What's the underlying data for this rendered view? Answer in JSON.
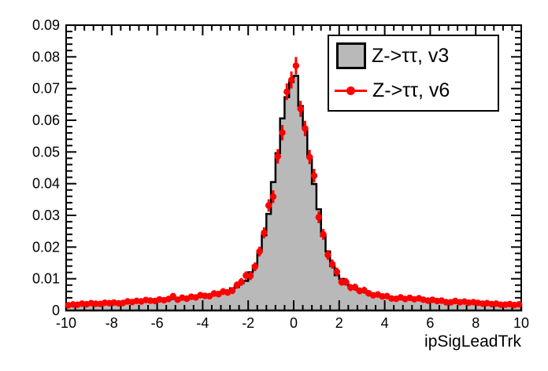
{
  "figure": {
    "background": "#ffffff",
    "frame_color": "#000000",
    "fill_gray": "#b9b9b9",
    "marker_red": "#ff0000"
  },
  "axes": {
    "x": {
      "label": "ipSigLeadTrk",
      "min": -10,
      "max": 10,
      "tick_values": [
        -10,
        -8,
        -6,
        -4,
        -2,
        0,
        2,
        4,
        6,
        8,
        10
      ],
      "tick_labels": [
        "-10",
        "-8",
        "-6",
        "-4",
        "-2",
        "0",
        "2",
        "4",
        "6",
        "8",
        "10"
      ],
      "minor_step": 0.4
    },
    "y": {
      "min": 0,
      "max": 0.09,
      "tick_values": [
        0,
        0.01,
        0.02,
        0.03,
        0.04,
        0.05,
        0.06,
        0.07,
        0.08,
        0.09
      ],
      "tick_labels": [
        "0",
        "0.01",
        "0.02",
        "0.03",
        "0.04",
        "0.05",
        "0.06",
        "0.07",
        "0.08",
        "0.09"
      ],
      "minor_step": 0.002
    }
  },
  "legend": {
    "entries": [
      {
        "label": "Z->ττ, v3",
        "marker": "filled-box",
        "fill_color": "#b9b9b9",
        "line_color": "#000000"
      },
      {
        "label": "Z->ττ, v6",
        "marker": "point-line",
        "color": "#ff0000"
      }
    ]
  },
  "chart_data": {
    "type": "bar",
    "subtype": "histogram-with-overlaid-points",
    "title": "",
    "xlabel": "ipSigLeadTrk",
    "ylabel": "",
    "xlim": [
      -10,
      10
    ],
    "ylim": [
      0,
      0.09
    ],
    "grid": false,
    "legend_position": "top-right",
    "x_start": -10,
    "bin_width": 0.2,
    "n_bins": 100,
    "series": [
      {
        "name": "Z->ττ, v3",
        "style": "filled-histogram",
        "fill": "#b9b9b9",
        "stroke": "#000000",
        "values": [
          0.00185,
          0.00175,
          0.00192,
          0.0019,
          0.00208,
          0.00208,
          0.00221,
          0.0022,
          0.00221,
          0.00245,
          0.00235,
          0.00253,
          0.00268,
          0.00262,
          0.00283,
          0.00266,
          0.00302,
          0.00297,
          0.00326,
          0.0032,
          0.00317,
          0.00347,
          0.00343,
          0.00364,
          0.00381,
          0.00369,
          0.00394,
          0.0038,
          0.00437,
          0.00436,
          0.00483,
          0.0048,
          0.0049,
          0.00551,
          0.00568,
          0.00636,
          0.007,
          0.00737,
          0.00859,
          0.00931,
          0.01206,
          0.01416,
          0.01866,
          0.0237,
          0.03048,
          0.0405,
          0.0496,
          0.0606,
          0.06728,
          0.07206,
          0.074,
          0.0645,
          0.0576,
          0.0484,
          0.0399,
          0.0319,
          0.0235,
          0.0186,
          0.014,
          0.01114,
          0.01,
          0.00833,
          0.00768,
          0.007,
          0.00611,
          0.00586,
          0.00513,
          0.0053,
          0.00475,
          0.00483,
          0.0044,
          0.00403,
          0.00408,
          0.00382,
          0.00384,
          0.00381,
          0.00349,
          0.00354,
          0.00323,
          0.00343,
          0.00317,
          0.00326,
          0.003,
          0.00278,
          0.00286,
          0.00274,
          0.00273,
          0.00268,
          0.00243,
          0.00242,
          0.00228,
          0.00239,
          0.00218,
          0.00221,
          0.0021,
          0.00192,
          0.00204,
          0.00186,
          0.00182,
          0.00185
        ]
      },
      {
        "name": "Z->ττ, v6",
        "style": "points-with-errorbars",
        "color": "#ff0000",
        "values": [
          0.00166,
          0.00191,
          0.00181,
          0.00216,
          0.00196,
          0.00231,
          0.0021,
          0.00207,
          0.00242,
          0.0023,
          0.00247,
          0.00225,
          0.00239,
          0.00286,
          0.00266,
          0.00302,
          0.00284,
          0.0033,
          0.0031,
          0.00301,
          0.00347,
          0.00326,
          0.00361,
          0.00452,
          0.0034,
          0.00403,
          0.00371,
          0.00432,
          0.00412,
          0.00484,
          0.0046,
          0.00451,
          0.00536,
          0.00518,
          0.00597,
          0.00567,
          0.00626,
          0.008,
          0.009,
          0.011,
          0.0109,
          0.0138,
          0.0186,
          0.0245,
          0.0331,
          0.0359,
          0.0486,
          0.0561,
          0.069,
          0.0727,
          0.0772,
          0.0636,
          0.0574,
          0.0484,
          0.0425,
          0.0294,
          0.024,
          0.0175,
          0.0146,
          0.0122,
          0.00902,
          0.00901,
          0.00722,
          0.00734,
          0.00617,
          0.00638,
          0.0054,
          0.00479,
          0.00504,
          0.00442,
          0.00453,
          0.00378,
          0.00368,
          0.00413,
          0.00361,
          0.004,
          0.00353,
          0.00385,
          0.0034,
          0.0031,
          0.00336,
          0.00298,
          0.00309,
          0.00261,
          0.00258,
          0.00297,
          0.00257,
          0.00281,
          0.00245,
          0.00264,
          0.0024,
          0.00216,
          0.00231,
          0.00202,
          0.00216,
          0.0018,
          0.00184,
          0.00201,
          0.00171,
          0.00194
        ],
        "errors": [
          0.00075,
          0.00077,
          0.00076,
          0.0008,
          0.00078,
          0.00081,
          0.00079,
          0.00079,
          0.00082,
          0.00081,
          0.00082,
          0.0008,
          0.00082,
          0.00085,
          0.00084,
          0.00087,
          0.00085,
          0.00089,
          0.00087,
          0.00087,
          0.0009,
          0.00089,
          0.00091,
          0.00097,
          0.0009,
          0.00094,
          0.00092,
          0.00096,
          0.00095,
          0.00099,
          0.00098,
          0.00097,
          0.00102,
          0.00101,
          0.00106,
          0.00104,
          0.00107,
          0.00116,
          0.00121,
          0.00129,
          0.00129,
          0.0014,
          0.00156,
          0.00173,
          0.00195,
          0.00201,
          0.00227,
          0.00241,
          0.00263,
          0.00269,
          0.00276,
          0.00254,
          0.00244,
          0.00227,
          0.00215,
          0.00186,
          0.00172,
          0.00152,
          0.00143,
          0.00134,
          0.00121,
          0.00121,
          0.00112,
          0.00113,
          0.00107,
          0.00108,
          0.00102,
          0.00099,
          0.001,
          0.00096,
          0.00097,
          0.00092,
          0.00092,
          0.00095,
          0.00091,
          0.00094,
          0.0009,
          0.00093,
          0.0009,
          0.00087,
          0.00089,
          0.00086,
          0.00087,
          0.00083,
          0.00083,
          0.00086,
          0.00083,
          0.00085,
          0.00082,
          0.00084,
          0.00082,
          0.0008,
          0.00081,
          0.00078,
          0.0008,
          0.00076,
          0.00077,
          0.00078,
          0.00075,
          0.00077
        ]
      }
    ]
  }
}
